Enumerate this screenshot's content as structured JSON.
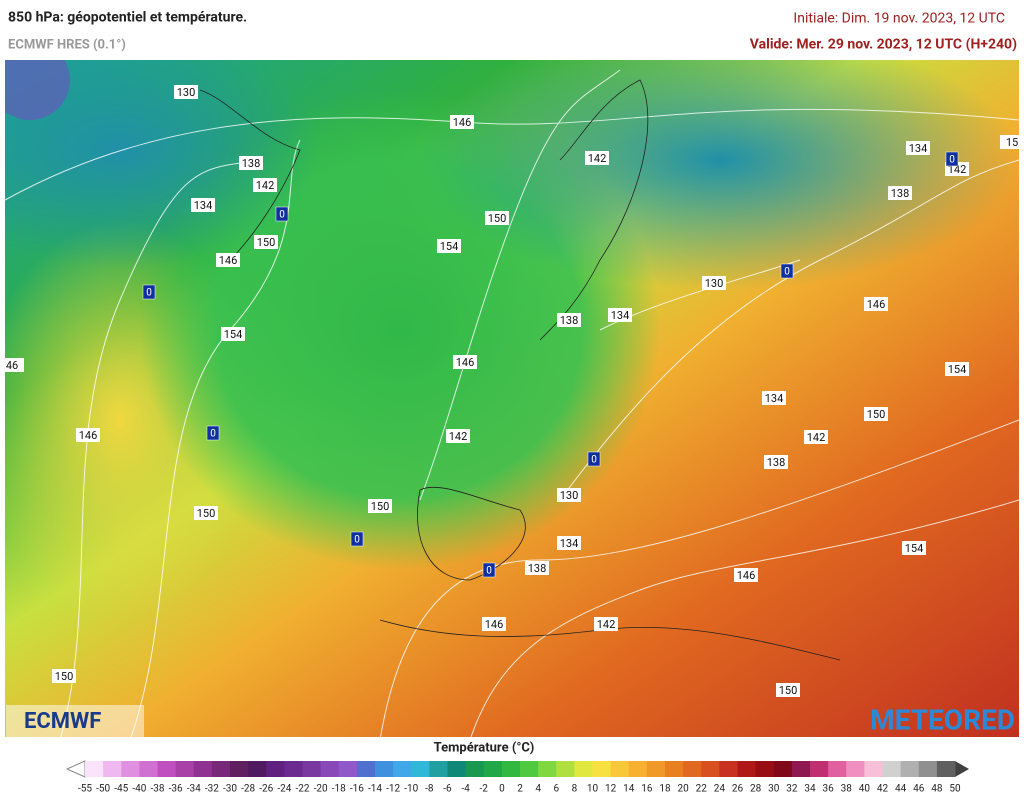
{
  "header": {
    "title": "850 hPa: géopotentiel et température.",
    "model": "ECMWF HRES (0.1°)",
    "initial": "Initiale: Dim. 19 nov. 2023, 12 UTC",
    "valid": "Valide: Mer. 29 nov. 2023, 12 UTC (H+240)"
  },
  "map": {
    "contour_labels": [
      "130",
      "146",
      "138",
      "142",
      "134",
      "150",
      "146",
      "154",
      "46",
      "146",
      "150",
      "150",
      "150",
      "154",
      "142",
      "130",
      "138",
      "134",
      "146",
      "142",
      "150",
      "130",
      "134",
      "138",
      "146",
      "142",
      "146",
      "150",
      "154",
      "138",
      "142",
      "134",
      "150",
      "154",
      "146",
      "138",
      "134",
      "142",
      "15"
    ],
    "freezing_labels": [
      "0",
      "0",
      "0",
      "0",
      "0",
      "0",
      "0",
      "0"
    ],
    "logo_left": "ECMWF",
    "logo_right": "METEORED"
  },
  "legend": {
    "title": "Température (°C)",
    "ticks": [
      -55,
      -50,
      -45,
      -40,
      -38,
      -36,
      -34,
      -32,
      -30,
      -28,
      -26,
      -24,
      -22,
      -20,
      -18,
      -16,
      -14,
      -12,
      -10,
      -8,
      -6,
      -4,
      -2,
      0,
      2,
      4,
      6,
      8,
      10,
      12,
      14,
      16,
      18,
      20,
      22,
      24,
      26,
      28,
      30,
      32,
      34,
      36,
      38,
      40,
      42,
      44,
      46,
      48,
      50
    ],
    "colors": [
      "#fbe4fb",
      "#f0b8f0",
      "#e090e0",
      "#d070d0",
      "#c050c0",
      "#a840a8",
      "#903090",
      "#782878",
      "#602060",
      "#501a60",
      "#602080",
      "#6a2a90",
      "#7838a0",
      "#8848b8",
      "#9058c8",
      "#5070d0",
      "#4090e0",
      "#40a8e8",
      "#30b8d8",
      "#20a0a0",
      "#108878",
      "#189850",
      "#20a848",
      "#30b840",
      "#50c840",
      "#80d840",
      "#b0e040",
      "#e0e840",
      "#f8e040",
      "#f8c838",
      "#f8b030",
      "#f09828",
      "#e88020",
      "#e06820",
      "#d85020",
      "#c83020",
      "#b01818",
      "#980c14",
      "#800818",
      "#901850",
      "#c03070",
      "#e060a0",
      "#f090c0",
      "#f8c0d8",
      "#d0d0d0",
      "#b0b0b0",
      "#909090",
      "#606060"
    ]
  }
}
